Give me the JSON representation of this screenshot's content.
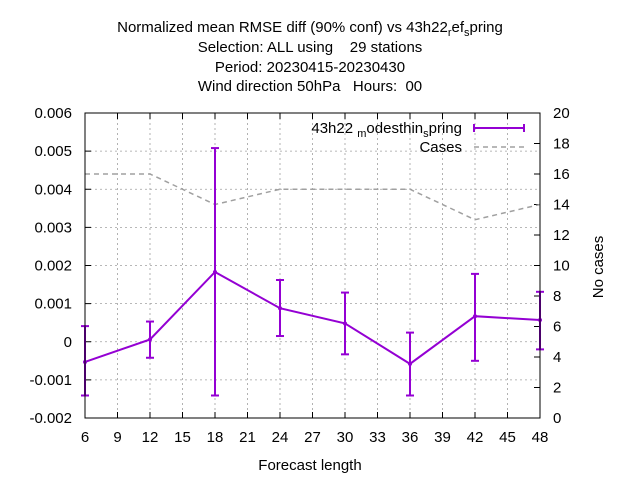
{
  "chart_data": {
    "type": "line",
    "title_lines": [
      "Normalized mean RMSE diff (90% conf) vs 43h22",
      "Selection: ALL using    29 stations",
      "Period: 20230415-20230430",
      "Wind direction 50hPa   Hours:  00"
    ],
    "title_suffix": {
      "sub1": "r",
      "mid1": "ef",
      "sub2": "s",
      "tail": "pring"
    },
    "xlabel": "Forecast length",
    "ylabel": "",
    "y2label": "No cases",
    "xlim": [
      6,
      48
    ],
    "ylim": [
      -0.002,
      0.006
    ],
    "y2lim": [
      0,
      20
    ],
    "x_ticks": [
      "6",
      "9",
      "12",
      "15",
      "18",
      "21",
      "24",
      "27",
      "30",
      "33",
      "36",
      "39",
      "42",
      "45",
      "48"
    ],
    "y_ticks": [
      "-0.002",
      "-0.001",
      "0",
      "0.001",
      "0.002",
      "0.003",
      "0.004",
      "0.005",
      "0.006"
    ],
    "y2_ticks": [
      "0",
      "2",
      "4",
      "6",
      "8",
      "10",
      "12",
      "14",
      "16",
      "18",
      "20"
    ],
    "grid": true,
    "legend_position": "top-right",
    "series": [
      {
        "name": "43h22 modesthin spring",
        "name_parts": {
          "a": "43h22 ",
          "sub1": "m",
          "b": "odesthin",
          "sub2": "s",
          "c": "pring"
        },
        "color": "#9400d3",
        "axis": "y",
        "x": [
          6,
          12,
          18,
          24,
          30,
          36,
          42,
          48
        ],
        "y": [
          -0.00053,
          6e-05,
          0.00183,
          0.00088,
          0.00048,
          -0.00058,
          0.00067,
          0.00057
        ],
        "err_low": [
          -0.00141,
          -0.00042,
          -0.00141,
          0.00015,
          -0.00033,
          -0.00141,
          -0.0005,
          -0.0002
        ],
        "err_high": [
          0.00041,
          0.00053,
          0.00508,
          0.00162,
          0.00129,
          0.00024,
          0.00178,
          0.00131
        ]
      },
      {
        "name": "Cases",
        "color": "#a0a0a0",
        "axis": "y2",
        "x": [
          6,
          12,
          18,
          24,
          30,
          36,
          42,
          48
        ],
        "y": [
          16,
          16,
          14,
          15,
          15,
          15,
          13,
          14
        ]
      }
    ]
  }
}
